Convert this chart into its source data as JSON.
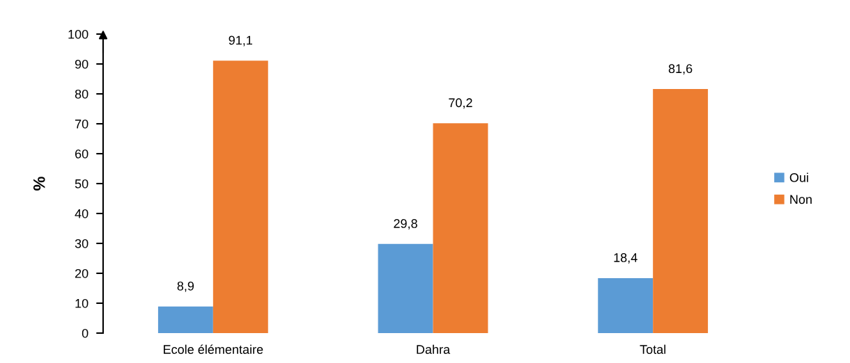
{
  "chart_data": {
    "type": "bar",
    "ylabel": "%",
    "categories": [
      "Ecole élémentaire",
      "Dahra",
      "Total"
    ],
    "series": [
      {
        "name": "Oui",
        "color": "#5b9bd5",
        "values": [
          8.9,
          29.8,
          18.4
        ],
        "value_labels": [
          "8,9",
          "29,8",
          "18,4"
        ]
      },
      {
        "name": "Non",
        "color": "#ed7d31",
        "values": [
          91.1,
          70.2,
          81.6
        ],
        "value_labels": [
          "91,1",
          "70,2",
          "81,6"
        ]
      }
    ],
    "ylim": [
      0,
      100
    ],
    "yticks": [
      0,
      10,
      20,
      30,
      40,
      50,
      60,
      70,
      80,
      90,
      100
    ],
    "legend": "right"
  }
}
